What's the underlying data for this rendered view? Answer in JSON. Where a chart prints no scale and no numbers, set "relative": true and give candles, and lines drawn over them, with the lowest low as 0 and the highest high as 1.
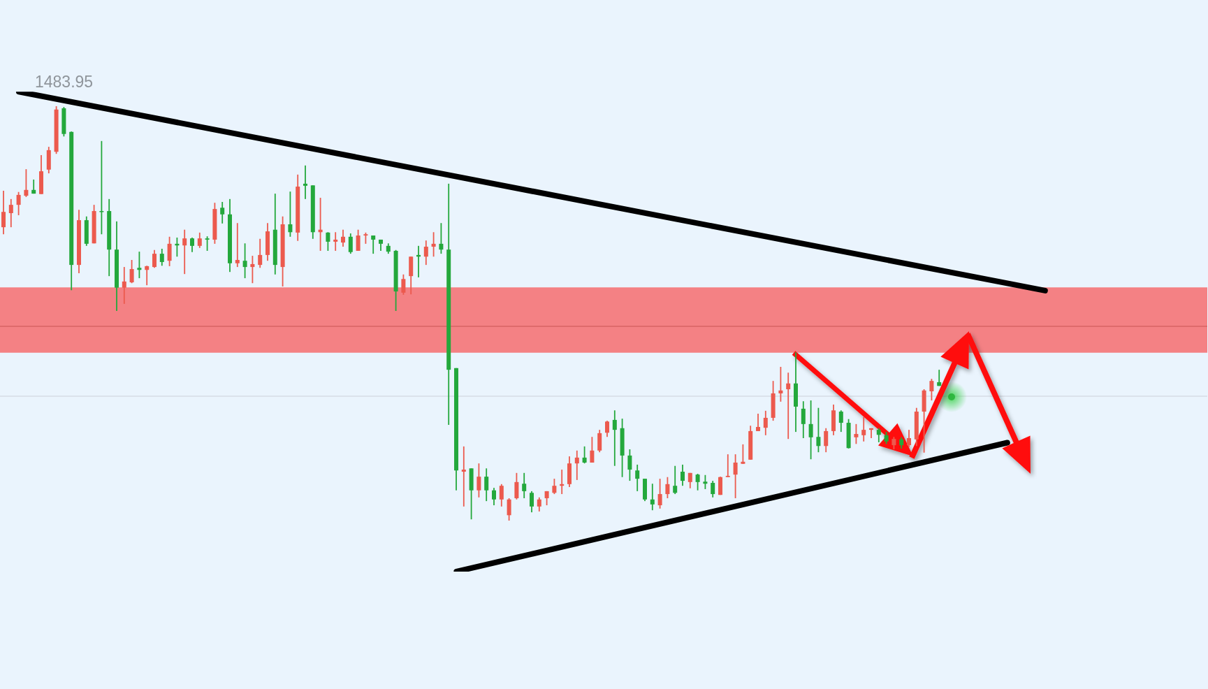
{
  "chart_data": {
    "type": "candlestick",
    "relative": true,
    "categories": [
      null,
      null,
      null,
      null,
      null,
      null,
      null,
      null,
      null,
      null,
      null,
      null,
      null,
      null,
      null,
      null,
      null,
      null,
      null,
      null,
      null,
      null,
      null,
      null,
      null,
      null,
      null,
      null,
      null,
      null,
      null,
      null,
      null,
      null,
      null,
      null,
      null,
      null,
      null,
      null,
      null,
      null,
      null,
      null,
      null,
      null,
      null,
      null,
      null,
      null,
      null,
      null,
      null,
      null,
      null,
      null,
      null,
      null,
      null,
      null,
      null,
      null,
      null,
      null,
      null,
      null,
      null,
      null,
      null,
      null,
      null,
      null,
      null,
      null,
      null,
      null,
      null,
      null,
      null,
      null,
      null,
      null,
      null,
      null,
      null,
      null,
      null,
      null,
      null,
      null,
      null,
      null,
      null,
      null,
      null,
      null,
      null,
      null,
      null,
      null,
      null,
      null,
      null,
      null,
      null,
      null,
      null,
      null,
      null,
      null,
      null,
      null,
      null,
      null,
      null,
      null,
      null,
      null,
      null,
      null,
      null,
      null,
      null,
      null,
      null,
      null,
      null,
      null,
      null,
      null,
      null,
      null,
      null,
      null,
      null,
      null,
      null,
      null,
      null,
      null,
      null,
      null,
      null,
      null,
      null,
      null,
      null,
      null,
      null,
      null,
      null,
      null,
      null,
      null,
      null,
      null,
      null,
      null,
      null,
      null
    ],
    "ohlc": [
      [
        0.708,
        0.796,
        0.691,
        0.745
      ],
      [
        0.742,
        0.776,
        0.708,
        0.762
      ],
      [
        0.762,
        0.793,
        0.737,
        0.786
      ],
      [
        0.784,
        0.848,
        0.781,
        0.798
      ],
      [
        0.798,
        0.823,
        0.789,
        0.789
      ],
      [
        0.788,
        0.882,
        0.788,
        0.843
      ],
      [
        0.847,
        0.902,
        0.838,
        0.894
      ],
      [
        0.89,
        1,
        0.885,
        0.992
      ],
      [
        0.995,
        0.998,
        0.927,
        0.933
      ],
      [
        0.938,
        0.939,
        0.556,
        0.617
      ],
      [
        0.617,
        0.75,
        0.597,
        0.725
      ],
      [
        0.725,
        0.734,
        0.663,
        0.668
      ],
      [
        0.669,
        0.762,
        0.669,
        0.747
      ],
      [
        0.747,
        0.916,
        0.691,
        0.745
      ],
      [
        0.747,
        0.776,
        0.59,
        0.654
      ],
      [
        0.654,
        0.722,
        0.506,
        0.562
      ],
      [
        0.562,
        0.612,
        0.523,
        0.577
      ],
      [
        0.575,
        0.629,
        0.573,
        0.607
      ],
      [
        0.61,
        0.649,
        0.585,
        0.605
      ],
      [
        0.605,
        0.615,
        0.568,
        0.614
      ],
      [
        0.612,
        0.653,
        0.61,
        0.644
      ],
      [
        0.644,
        0.656,
        0.615,
        0.624
      ],
      [
        0.627,
        0.685,
        0.614,
        0.668
      ],
      [
        0.668,
        0.683,
        0.637,
        0.664
      ],
      [
        0.664,
        0.702,
        0.595,
        0.681
      ],
      [
        0.681,
        0.683,
        0.648,
        0.663
      ],
      [
        0.663,
        0.695,
        0.658,
        0.681
      ],
      [
        0.681,
        0.686,
        0.651,
        0.678
      ],
      [
        0.678,
        0.767,
        0.668,
        0.752
      ],
      [
        0.755,
        0.769,
        0.717,
        0.739
      ],
      [
        0.739,
        0.776,
        0.6,
        0.621
      ],
      [
        0.621,
        0.718,
        0.612,
        0.629
      ],
      [
        0.627,
        0.669,
        0.585,
        0.612
      ],
      [
        0.612,
        0.639,
        0.573,
        0.619
      ],
      [
        0.617,
        0.68,
        0.61,
        0.641
      ],
      [
        0.641,
        0.718,
        0.627,
        0.698
      ],
      [
        0.702,
        0.789,
        0.594,
        0.617
      ],
      [
        0.612,
        0.734,
        0.565,
        0.715
      ],
      [
        0.715,
        0.794,
        0.685,
        0.696
      ],
      [
        0.695,
        0.835,
        0.675,
        0.806
      ],
      [
        0.813,
        0.857,
        0.776,
        0.808
      ],
      [
        0.809,
        0.809,
        0.68,
        0.696
      ],
      [
        0.696,
        0.779,
        0.651,
        0.702
      ],
      [
        0.695,
        0.696,
        0.651,
        0.673
      ],
      [
        0.673,
        0.696,
        0.651,
        0.678
      ],
      [
        0.671,
        0.702,
        0.661,
        0.685
      ],
      [
        0.685,
        0.693,
        0.644,
        0.648
      ],
      [
        0.651,
        0.702,
        0.651,
        0.688
      ],
      [
        0.688,
        0.695,
        0.668,
        0.691
      ],
      [
        0.688,
        0.688,
        0.644,
        0.678
      ],
      [
        0.678,
        0.678,
        0.651,
        0.668
      ],
      [
        0.663,
        0.669,
        0.644,
        0.649
      ],
      [
        0.651,
        0.653,
        0.506,
        0.553
      ],
      [
        0.55,
        0.594,
        0.545,
        0.583
      ],
      [
        0.59,
        0.637,
        0.546,
        0.637
      ],
      [
        0.641,
        0.663,
        0.587,
        0.637
      ],
      [
        0.637,
        0.676,
        0.617,
        0.661
      ],
      [
        0.661,
        0.696,
        0.637,
        0.668
      ],
      [
        0.668,
        0.718,
        0.644,
        0.654
      ],
      [
        0.654,
        0.813,
        0.231,
        0.364
      ],
      [
        0.368,
        0.368,
        0.073,
        0.121
      ],
      [
        0.118,
        0.179,
        0.034,
        0.123
      ],
      [
        0.126,
        0.126,
        0.003,
        0.073
      ],
      [
        0.073,
        0.138,
        0.056,
        0.106
      ],
      [
        0.106,
        0.126,
        0.047,
        0.073
      ],
      [
        0.073,
        0.079,
        0.037,
        0.051
      ],
      [
        0.051,
        0.088,
        0.034,
        0.084
      ],
      [
        0.013,
        0.054,
        0,
        0.051
      ],
      [
        0.054,
        0.115,
        0.051,
        0.093
      ],
      [
        0.089,
        0.115,
        0.054,
        0.071
      ],
      [
        0.067,
        0.071,
        0.02,
        0.034
      ],
      [
        0.034,
        0.056,
        0.022,
        0.051
      ],
      [
        0.054,
        0.071,
        0.037,
        0.071
      ],
      [
        0.067,
        0.101,
        0.064,
        0.084
      ],
      [
        0.084,
        0.123,
        0.064,
        0.088
      ],
      [
        0.088,
        0.155,
        0.081,
        0.138
      ],
      [
        0.138,
        0.169,
        0.098,
        0.152
      ],
      [
        0.152,
        0.179,
        0.138,
        0.14
      ],
      [
        0.14,
        0.202,
        0.14,
        0.169
      ],
      [
        0.169,
        0.219,
        0.165,
        0.211
      ],
      [
        0.212,
        0.241,
        0.202,
        0.239
      ],
      [
        0.243,
        0.266,
        0.132,
        0.219
      ],
      [
        0.223,
        0.246,
        0.105,
        0.157
      ],
      [
        0.157,
        0.172,
        0.096,
        0.123
      ],
      [
        0.121,
        0.135,
        0.071,
        0.101
      ],
      [
        0.101,
        0.101,
        0.047,
        0.051
      ],
      [
        0.051,
        0.089,
        0.025,
        0.039
      ],
      [
        0.037,
        0.101,
        0.029,
        0.064
      ],
      [
        0.064,
        0.105,
        0.054,
        0.088
      ],
      [
        0.084,
        0.132,
        0.064,
        0.067
      ],
      [
        0.118,
        0.135,
        0.084,
        0.096
      ],
      [
        0.093,
        0.115,
        0.078,
        0.115
      ],
      [
        0.111,
        0.113,
        0.073,
        0.093
      ],
      [
        0.094,
        0.11,
        0.076,
        0.089
      ],
      [
        0.091,
        0.096,
        0.056,
        0.064
      ],
      [
        0.062,
        0.106,
        0.062,
        0.105
      ],
      [
        0.105,
        0.16,
        0.105,
        0.108
      ],
      [
        0.111,
        0.16,
        0.054,
        0.14
      ],
      [
        0.137,
        0.184,
        0.137,
        0.142
      ],
      [
        0.147,
        0.229,
        0.147,
        0.216
      ],
      [
        0.216,
        0.258,
        0.216,
        0.226
      ],
      [
        0.224,
        0.265,
        0.206,
        0.248
      ],
      [
        0.248,
        0.337,
        0.241,
        0.307
      ],
      [
        0.307,
        0.371,
        0.287,
        0.314
      ],
      [
        0.317,
        0.357,
        0.197,
        0.331
      ],
      [
        0.331,
        0.406,
        0.214,
        0.275
      ],
      [
        0.27,
        0.288,
        0.199,
        0.233
      ],
      [
        0.233,
        0.29,
        0.148,
        0.201
      ],
      [
        0.202,
        0.272,
        0.165,
        0.18
      ],
      [
        0.18,
        0.223,
        0.165,
        0.216
      ],
      [
        0.216,
        0.28,
        0.206,
        0.266
      ],
      [
        0.263,
        0.266,
        0.214,
        0.236
      ],
      [
        0.236,
        0.245,
        0.174,
        0.175
      ],
      [
        0.201,
        0.233,
        0.185,
        0.209
      ],
      [
        0.206,
        0.25,
        0.191,
        0.219
      ],
      [
        0.219,
        0.223,
        0.199,
        0.223
      ],
      [
        0.219,
        0.223,
        0.189,
        0.207
      ],
      [
        0.206,
        0.214,
        0.185,
        0.191
      ],
      [
        0.182,
        0.202,
        0.172,
        0.197
      ],
      [
        0.196,
        0.201,
        0.174,
        0.182
      ],
      [
        0.182,
        0.219,
        0.177,
        0.199
      ],
      [
        0.196,
        0.272,
        0.18,
        0.263
      ],
      [
        0.263,
        0.317,
        0.164,
        0.314
      ],
      [
        0.312,
        0.342,
        0.29,
        0.337
      ],
      [
        0.334,
        0.364,
        0.325,
        0.325
      ],
      null,
      null,
      null,
      null,
      null,
      null,
      null,
      null,
      null,
      null,
      null,
      null,
      null,
      null,
      null,
      null,
      null,
      null,
      null,
      null,
      null,
      null,
      null,
      null,
      null,
      null,
      null,
      null,
      null,
      null,
      null,
      null,
      null,
      null,
      null
    ],
    "colors": [
      "#ec5a4e",
      "#ec5a4e",
      "#ec5a4e",
      "#ec5a4e",
      "#24a83c",
      "#ec5a4e",
      "#ec5a4e",
      "#ec5a4e",
      "#24a83c",
      "#24a83c",
      "#ec5a4e",
      "#24a83c",
      "#ec5a4e",
      "#24a83c",
      "#24a83c",
      "#24a83c",
      "#ec5a4e",
      "#ec5a4e",
      "#24a83c",
      "#ec5a4e",
      "#ec5a4e",
      "#24a83c",
      "#ec5a4e",
      "#24a83c",
      "#ec5a4e",
      "#24a83c",
      "#ec5a4e",
      "#24a83c",
      "#ec5a4e",
      "#24a83c",
      "#24a83c",
      "#ec5a4e",
      "#24a83c",
      "#ec5a4e",
      "#ec5a4e",
      "#ec5a4e",
      "#24a83c",
      "#ec5a4e",
      "#24a83c",
      "#ec5a4e",
      "#24a83c",
      "#24a83c",
      "#ec5a4e",
      "#24a83c",
      "#ec5a4e",
      "#ec5a4e",
      "#24a83c",
      "#ec5a4e",
      "#ec5a4e",
      "#24a83c",
      "#24a83c",
      "#24a83c",
      "#24a83c",
      "#ec5a4e",
      "#ec5a4e",
      "#24a83c",
      "#ec5a4e",
      "#ec5a4e",
      "#24a83c",
      "#24a83c",
      "#24a83c",
      "#ec5a4e",
      "#24a83c",
      "#ec5a4e",
      "#24a83c",
      "#24a83c",
      "#ec5a4e",
      "#ec5a4e",
      "#ec5a4e",
      "#24a83c",
      "#24a83c",
      "#ec5a4e",
      "#ec5a4e",
      "#ec5a4e",
      "#ec5a4e",
      "#ec5a4e",
      "#ec5a4e",
      "#24a83c",
      "#ec5a4e",
      "#ec5a4e",
      "#ec5a4e",
      "#24a83c",
      "#24a83c",
      "#24a83c",
      "#24a83c",
      "#24a83c",
      "#24a83c",
      "#ec5a4e",
      "#ec5a4e",
      "#24a83c",
      "#24a83c",
      "#ec5a4e",
      "#24a83c",
      "#24a83c",
      "#24a83c",
      "#ec5a4e",
      "#ec5a4e",
      "#ec5a4e",
      "#ec5a4e",
      "#ec5a4e",
      "#ec5a4e",
      "#ec5a4e",
      "#ec5a4e",
      "#ec5a4e",
      "#ec5a4e",
      "#24a83c",
      "#24a83c",
      "#24a83c",
      "#24a83c",
      "#ec5a4e",
      "#ec5a4e",
      "#24a83c",
      "#24a83c",
      "#ec5a4e",
      "#ec5a4e",
      "#ec5a4e",
      "#24a83c",
      "#24a83c",
      "#ec5a4e",
      "#24a83c",
      "#ec5a4e",
      "#ec5a4e",
      "#ec5a4e",
      "#ec5a4e",
      "#24a83c",
      null,
      null,
      null,
      null,
      null,
      null,
      null,
      null,
      null,
      null,
      null,
      null,
      null,
      null,
      null,
      null,
      null,
      null,
      null,
      null,
      null,
      null,
      null,
      null,
      null,
      null,
      null,
      null,
      null,
      null,
      null,
      null,
      null,
      null,
      null
    ],
    "series": [
      {
        "type": "line",
        "color": "#000000",
        "values": [
          null,
          null,
          1.035,
          null,
          null,
          null,
          null,
          null,
          null,
          null,
          null,
          null,
          null,
          null,
          null,
          null,
          null,
          null,
          null,
          null,
          null,
          null,
          null,
          null,
          null,
          null,
          null,
          null,
          null,
          null,
          null,
          null,
          null,
          null,
          null,
          null,
          null,
          null,
          null,
          null,
          null,
          null,
          null,
          null,
          null,
          null,
          null,
          null,
          null,
          null,
          null,
          null,
          null,
          null,
          null,
          null,
          null,
          null,
          null,
          null,
          null,
          null,
          null,
          null,
          null,
          null,
          null,
          null,
          null,
          null,
          null,
          null,
          null,
          null,
          null,
          null,
          null,
          null,
          null,
          null,
          null,
          null,
          null,
          null,
          null,
          null,
          null,
          null,
          null,
          null,
          null,
          null,
          null,
          null,
          null,
          null,
          null,
          null,
          null,
          null,
          null,
          null,
          null,
          null,
          null,
          null,
          null,
          null,
          null,
          null,
          null,
          null,
          null,
          null,
          null,
          null,
          null,
          null,
          null,
          null,
          null,
          null,
          null,
          null,
          null,
          null,
          null,
          null,
          null,
          null,
          null,
          null,
          null,
          null,
          null,
          null,
          null,
          null,
          0.555,
          null,
          null,
          null,
          null,
          null,
          null,
          null,
          null,
          null,
          null,
          null,
          null,
          null,
          null,
          null,
          null,
          null,
          null,
          null,
          null,
          null
        ]
      },
      {
        "type": "line",
        "color": "#000000",
        "values": [
          null,
          null,
          null,
          null,
          null,
          null,
          null,
          null,
          null,
          null,
          null,
          null,
          null,
          null,
          null,
          null,
          null,
          null,
          null,
          null,
          null,
          null,
          null,
          null,
          null,
          null,
          null,
          null,
          null,
          null,
          null,
          null,
          null,
          null,
          null,
          null,
          null,
          null,
          null,
          null,
          null,
          null,
          null,
          null,
          null,
          null,
          null,
          null,
          null,
          null,
          null,
          null,
          null,
          null,
          null,
          null,
          null,
          null,
          null,
          null,
          -0.123,
          null,
          null,
          null,
          null,
          null,
          null,
          null,
          null,
          null,
          null,
          null,
          null,
          null,
          null,
          null,
          null,
          null,
          null,
          null,
          null,
          null,
          null,
          null,
          null,
          null,
          null,
          null,
          null,
          null,
          null,
          null,
          null,
          null,
          null,
          null,
          null,
          null,
          null,
          null,
          null,
          null,
          null,
          null,
          null,
          null,
          null,
          null,
          null,
          null,
          null,
          null,
          null,
          null,
          null,
          null,
          null,
          null,
          null,
          null,
          null,
          null,
          null,
          null,
          null,
          null,
          null,
          null,
          null,
          null,
          null,
          null,
          null,
          0.188,
          null,
          null,
          null,
          null,
          null,
          null,
          null,
          null,
          null,
          null,
          null,
          null,
          null,
          null,
          null,
          null,
          null,
          null,
          null,
          null,
          null,
          null,
          null,
          null,
          null,
          null
        ]
      }
    ],
    "bands": [
      {
        "axis": "y",
        "from": 0.405,
        "to": 0.563,
        "color": "#f47a7d"
      }
    ],
    "ref_lines": [
      {
        "axis": "y",
        "value": 0.469,
        "color": "#d96464"
      },
      {
        "axis": "y",
        "value": 0.3,
        "color": "#d6dde4"
      }
    ],
    "annotations": [
      "1483.95"
    ]
  }
}
